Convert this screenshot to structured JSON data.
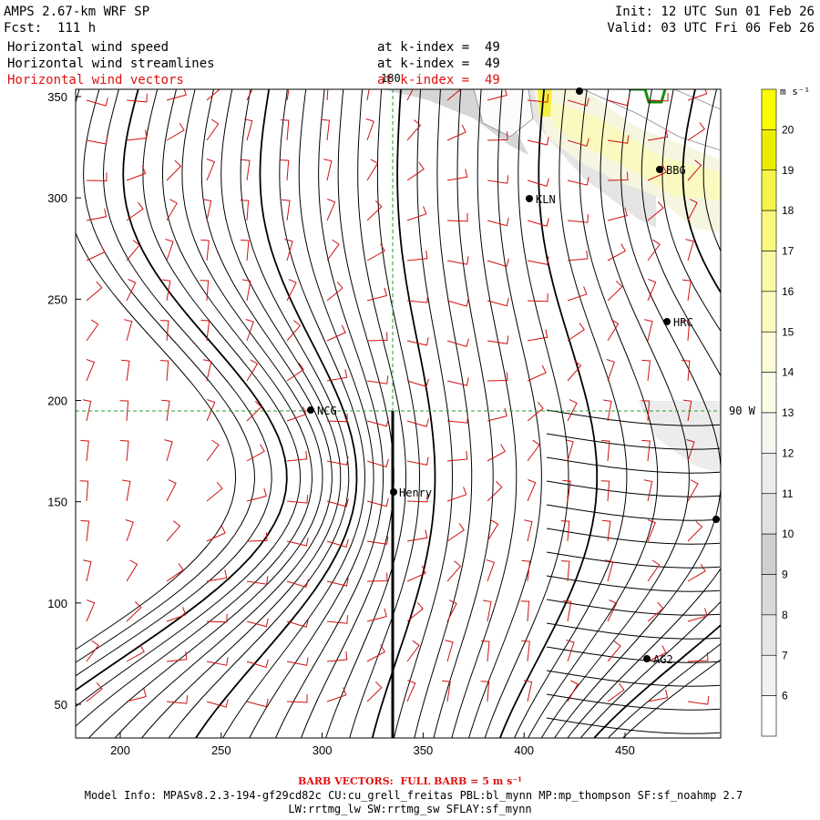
{
  "header": {
    "model": "AMPS 2.67-km WRF SP",
    "forecast": "Fcst:  111 h",
    "init": "Init: 12 UTC Sun 01 Feb 26",
    "valid": "Valid: 03 UTC Fri 06 Feb 26"
  },
  "fields": [
    {
      "name": "Horizontal wind speed",
      "level": "at k-index =  49",
      "color": "#000000"
    },
    {
      "name": "Horizontal wind streamlines",
      "level": "at k-index =  49",
      "color": "#000000"
    },
    {
      "name": "Horizontal wind vectors",
      "level": "at k-index =  49",
      "color": "#e01010"
    }
  ],
  "map": {
    "x_ticks": [
      "200",
      "250",
      "300",
      "350",
      "400",
      "450"
    ],
    "y_ticks": [
      "50",
      "100",
      "150",
      "200",
      "250",
      "300",
      "350"
    ],
    "meridian_label": "180",
    "parallel_label": "90 W",
    "stations": [
      {
        "id": "NCG",
        "label": "NCG"
      },
      {
        "id": "Henry",
        "label": "Henry"
      },
      {
        "id": "KLN",
        "label": "KLN"
      },
      {
        "id": "BBG",
        "label": "BBG"
      },
      {
        "id": "HRC",
        "label": "HRC"
      },
      {
        "id": "AG2",
        "label": "AG2"
      }
    ]
  },
  "colorbar": {
    "unit": "m s⁻¹",
    "labels": [
      "6",
      "7",
      "8",
      "9",
      "10",
      "11",
      "12",
      "13",
      "14",
      "15",
      "16",
      "17",
      "18",
      "19",
      "20"
    ],
    "colors": [
      "#ffffff",
      "#f2f2f2",
      "#e6e6e6",
      "#d9d9d9",
      "#cfcfcf",
      "#e2e2e2",
      "#ececec",
      "#f6f6f0",
      "#fbfbe6",
      "#fcfcd6",
      "#fbfbc0",
      "#fafaa6",
      "#f8f87c",
      "#f4f44a",
      "#ecec00",
      "#fafa00"
    ]
  },
  "footer": {
    "barb": "BARB VECTORS:  FULL BARB = 5 m s⁻¹",
    "model_info": "Model Info: MPASv8.2.3-194-gf29cd82c CU:cu_grell_freitas PBL:bl_mynn MP:mp_thompson SF:sf_noahmp 2.7",
    "model_info2": "LW:rrtmg_lw SW:rrtmg_sw SFLAY:sf_mynn"
  }
}
